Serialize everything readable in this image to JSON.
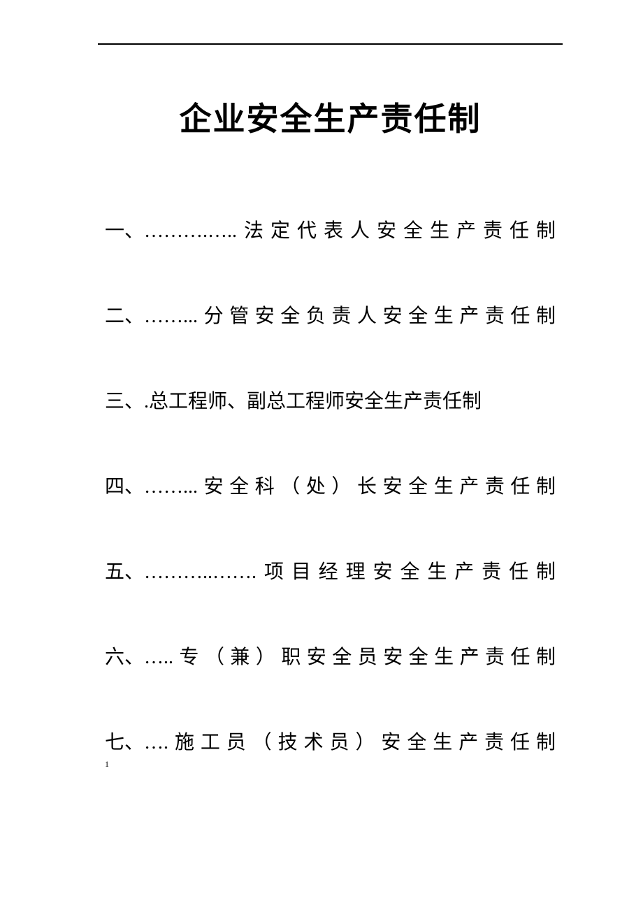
{
  "title": "企业安全生产责任制",
  "page_number": "1",
  "items": [
    {
      "num": "一、",
      "leader": "……….…..",
      "text": "法定代表人安全生产责任制",
      "multiline": false
    },
    {
      "num": "二、",
      "leader": "……...",
      "text": "分管安全负责人安全生产责任制",
      "multiline": false
    },
    {
      "num": "三、",
      "leader": ".",
      "text": "总工程师、副总工程师安全生产责任制",
      "multiline": true
    },
    {
      "num": "四、",
      "leader": "……...",
      "text": "安全科（处）长安全生产责任制",
      "multiline": false
    },
    {
      "num": "五、",
      "leader": "………..…….",
      "text": "项目经理安全生产责任制",
      "multiline": false
    },
    {
      "num": "六、",
      "leader": "…..",
      "text": "专（兼）职安全员安全生产责任制",
      "multiline": false
    },
    {
      "num": "七、",
      "leader": "….",
      "text": "施工员（技术员）安全生产责任制",
      "multiline": false
    }
  ]
}
